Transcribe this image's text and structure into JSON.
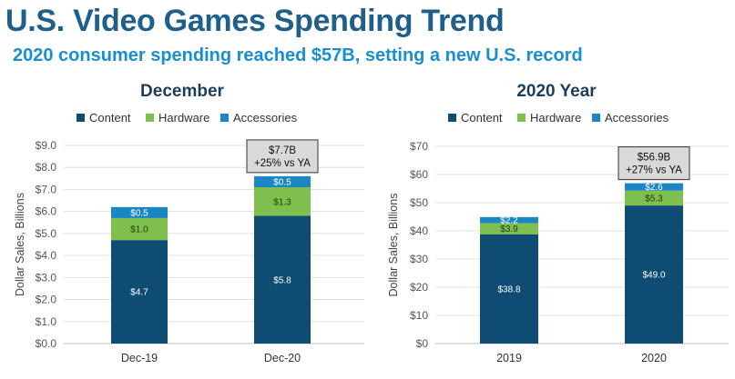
{
  "header": {
    "title": "U.S. Video Games Spending Trend",
    "subtitle": "2020 consumer spending reached $57B, setting a new U.S. record"
  },
  "colors": {
    "content": "#0e4c73",
    "hardware": "#7fbf4e",
    "accessories": "#1a87c4",
    "title": "#1f5f8b",
    "subtitle": "#1a8fd0"
  },
  "chart_data": [
    {
      "type": "bar",
      "stacked": true,
      "title": "December",
      "ylabel": "Dollar Sales, Billions",
      "ylim": [
        0,
        9
      ],
      "yticks": [
        "$0.0",
        "$1.0",
        "$2.0",
        "$3.0",
        "$4.0",
        "$5.0",
        "$6.0",
        "$7.0",
        "$8.0",
        "$9.0"
      ],
      "categories": [
        "Dec-19",
        "Dec-20"
      ],
      "legend": [
        "Content",
        "Hardware",
        "Accessories"
      ],
      "legend_position": "top",
      "grid": true,
      "series": [
        {
          "name": "Content",
          "values": [
            4.7,
            5.8
          ],
          "labels": [
            "$4.7",
            "$5.8"
          ]
        },
        {
          "name": "Hardware",
          "values": [
            1.0,
            1.3
          ],
          "labels": [
            "$1.0",
            "$1.3"
          ]
        },
        {
          "name": "Accessories",
          "values": [
            0.5,
            0.5
          ],
          "labels": [
            "$0.5",
            "$0.5"
          ]
        }
      ],
      "annotation": {
        "category": "Dec-20",
        "line1": "$7.7B",
        "line2": "+25% vs YA"
      }
    },
    {
      "type": "bar",
      "stacked": true,
      "title": "2020 Year",
      "ylabel": "Dollar Sales, Billions",
      "ylim": [
        0,
        70
      ],
      "yticks": [
        "$0",
        "$10",
        "$20",
        "$30",
        "$40",
        "$50",
        "$60",
        "$70"
      ],
      "categories": [
        "2019",
        "2020"
      ],
      "legend": [
        "Content",
        "Hardware",
        "Accessories"
      ],
      "legend_position": "top",
      "grid": true,
      "series": [
        {
          "name": "Content",
          "values": [
            38.8,
            49.0
          ],
          "labels": [
            "$38.8",
            "$49.0"
          ]
        },
        {
          "name": "Hardware",
          "values": [
            3.9,
            5.3
          ],
          "labels": [
            "$3.9",
            "$5.3"
          ]
        },
        {
          "name": "Accessories",
          "values": [
            2.2,
            2.6
          ],
          "labels": [
            "$2.2",
            "$2.6"
          ]
        }
      ],
      "annotation": {
        "category": "2020",
        "line1": "$56.9B",
        "line2": "+27% vs YA"
      }
    }
  ]
}
